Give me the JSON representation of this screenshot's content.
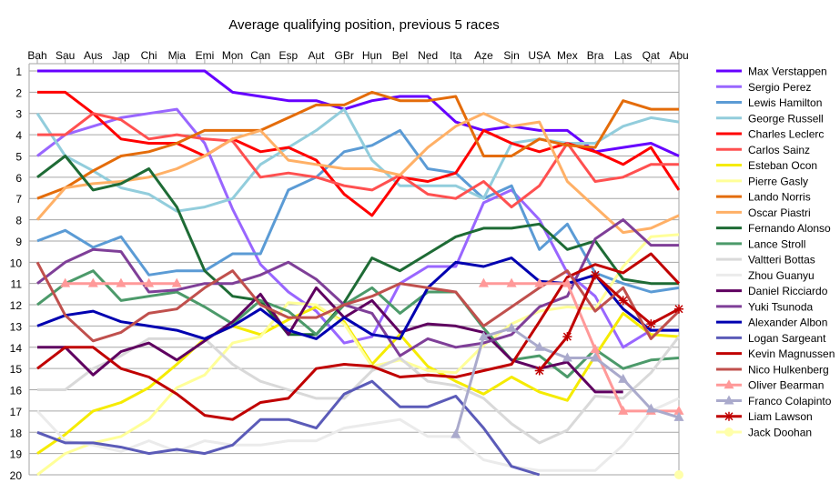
{
  "chart_data": {
    "type": "line",
    "title": "Average qualifying position, previous 5 races",
    "xlabel": "",
    "ylabel": "",
    "ylim": [
      1,
      20
    ],
    "y_inverted": true,
    "grid": true,
    "legend_position": "right",
    "categories": [
      "Bah",
      "Sau",
      "Aus",
      "Jap",
      "Chi",
      "Mia",
      "Emi",
      "Mon",
      "Can",
      "Esp",
      "Aut",
      "GBr",
      "Hun",
      "Bel",
      "Ned",
      "Ita",
      "Aze",
      "Sin",
      "USA",
      "Mex",
      "Bra",
      "Las",
      "Qat",
      "Abu"
    ],
    "y_ticks": [
      1,
      2,
      3,
      4,
      5,
      6,
      7,
      8,
      9,
      10,
      11,
      12,
      13,
      14,
      15,
      16,
      17,
      18,
      19,
      20
    ],
    "series": [
      {
        "name": "Max Verstappen",
        "color": "#6600FF",
        "marker": "none",
        "values": [
          1,
          1,
          1,
          1,
          1,
          1,
          1,
          2,
          2.2,
          2.4,
          2.4,
          2.8,
          2.4,
          2.2,
          2.2,
          3.4,
          3.8,
          3.6,
          3.8,
          3.8,
          4.8,
          4.6,
          4.4,
          5
        ]
      },
      {
        "name": "Sergio Perez",
        "color": "#9966FF",
        "marker": "none",
        "values": [
          5,
          4,
          3.6,
          3.2,
          3,
          2.8,
          4.4,
          7.5,
          10.1,
          11.4,
          12.3,
          13.8,
          13.5,
          11,
          10.2,
          10.2,
          7.2,
          6.6,
          8,
          10.5,
          11.6,
          14,
          13.2,
          13.2
        ]
      },
      {
        "name": "Lewis Hamilton",
        "color": "#5B9BD5",
        "marker": "none",
        "values": [
          9,
          8.5,
          9.3,
          8.8,
          10.6,
          10.4,
          10.4,
          9.6,
          9.6,
          6.6,
          6,
          4.8,
          4.5,
          3.8,
          5.6,
          5.8,
          7,
          6.4,
          9.4,
          8.2,
          10.5,
          11,
          11.4,
          11.2
        ]
      },
      {
        "name": "George Russell",
        "color": "#92CDDC",
        "marker": "none",
        "values": [
          3,
          5,
          5.7,
          6.5,
          6.8,
          7.6,
          7.4,
          7,
          5.4,
          4.6,
          3.8,
          2.8,
          5.2,
          6.4,
          6.4,
          6.4,
          7,
          4.4,
          4.2,
          4.4,
          4.4,
          3.6,
          3.2,
          3.4
        ]
      },
      {
        "name": "Charles Leclerc",
        "color": "#FF0000",
        "marker": "none",
        "values": [
          2,
          2,
          3,
          4.2,
          4.4,
          4.4,
          5,
          4.2,
          4.8,
          4.6,
          5.2,
          6.8,
          7.8,
          6,
          6.2,
          5.8,
          3.8,
          4.4,
          4.8,
          4.4,
          4.8,
          5.4,
          4.6,
          6.6
        ]
      },
      {
        "name": "Carlos Sainz",
        "color": "#FF5050",
        "marker": "none",
        "values": [
          4,
          4,
          3,
          3.3,
          4.2,
          4,
          4.2,
          4.3,
          6,
          5.8,
          6,
          6.4,
          6.6,
          5.9,
          6.8,
          7,
          6.2,
          7.4,
          6.4,
          4.4,
          6.2,
          6,
          5.4,
          5.4
        ]
      },
      {
        "name": "Esteban Ocon",
        "color": "#F5EB00",
        "marker": "none",
        "values": [
          19,
          18.1,
          17,
          16.6,
          15.9,
          14.8,
          13.6,
          13,
          13.4,
          12.7,
          12.1,
          12.8,
          14.8,
          13.4,
          14.9,
          15.6,
          16.2,
          15.4,
          16.1,
          16.5,
          14.4,
          12.4,
          13.4,
          13.5
        ]
      },
      {
        "name": "Pierre Gasly",
        "color": "#FFFF99",
        "marker": "none",
        "values": [
          20,
          19,
          18.5,
          18.2,
          17.4,
          15.9,
          15.3,
          13.8,
          13.5,
          11.9,
          12,
          12.9,
          14.9,
          14.6,
          15.1,
          15.2,
          13.9,
          12.9,
          12.3,
          12.1,
          12.2,
          10.2,
          8.8,
          8.7
        ]
      },
      {
        "name": "Lando Norris",
        "color": "#E46C0A",
        "marker": "none",
        "values": [
          7,
          6.5,
          5.7,
          5,
          4.8,
          4.4,
          3.8,
          3.8,
          3.8,
          3.2,
          2.6,
          2.6,
          2,
          2.4,
          2.4,
          2.2,
          5,
          5,
          4.2,
          4.5,
          4.6,
          2.4,
          2.8,
          2.8
        ]
      },
      {
        "name": "Oscar Piastri",
        "color": "#FFB066",
        "marker": "none",
        "values": [
          8,
          6.5,
          6.3,
          6.2,
          6,
          5.6,
          5,
          4.2,
          3.8,
          5.2,
          5.4,
          5.6,
          5.6,
          5.9,
          4.6,
          3.6,
          3,
          3.6,
          3.4,
          6.2,
          7.4,
          8.6,
          8.4,
          7.8
        ]
      },
      {
        "name": "Fernando Alonso",
        "color": "#1E6B35",
        "marker": "none",
        "values": [
          6,
          5,
          6.6,
          6.3,
          5.6,
          7.4,
          10.4,
          11.6,
          11.8,
          13.4,
          13.4,
          11.9,
          9.8,
          10.4,
          9.6,
          8.8,
          8.4,
          8.4,
          8.2,
          9.4,
          9,
          10.8,
          11,
          11
        ]
      },
      {
        "name": "Lance Stroll",
        "color": "#4C9A6A",
        "marker": "none",
        "values": [
          12,
          11,
          10.4,
          11.8,
          11.6,
          11.4,
          12.1,
          12.9,
          11.8,
          12.3,
          13.4,
          12,
          11.2,
          12.4,
          11.4,
          11.4,
          13.1,
          14.6,
          14.4,
          15.4,
          14.1,
          15,
          14.6,
          14.5
        ]
      },
      {
        "name": "Valtteri Bottas",
        "color": "#D9D9D9",
        "marker": "none",
        "values": [
          16,
          16,
          15,
          14.4,
          13.6,
          13.6,
          13.6,
          14.8,
          15.6,
          16,
          16.4,
          16.4,
          15.1,
          14.5,
          15.6,
          15.8,
          16.4,
          17.6,
          18.5,
          17.9,
          16.3,
          16.4,
          15.2,
          13.5
        ]
      },
      {
        "name": "Zhou Guanyu",
        "color": "#EBEBEB",
        "marker": "none",
        "values": [
          17,
          18.4,
          18.6,
          18.9,
          18.4,
          18.9,
          18.4,
          18.6,
          18.6,
          18.4,
          18.4,
          17.8,
          17.6,
          17.4,
          18.2,
          18.2,
          19.3,
          19.6,
          19.8,
          19.8,
          19.8,
          18.6,
          17,
          16.4
        ]
      },
      {
        "name": "Daniel Ricciardo",
        "color": "#5F0060",
        "marker": "none",
        "values": [
          14,
          14,
          15.3,
          14.2,
          13.8,
          14.6,
          13.7,
          12.8,
          11.5,
          13.4,
          11.2,
          12.6,
          11.8,
          13.3,
          12.9,
          13,
          13.3,
          14.6,
          15,
          14.7,
          16.1,
          16.1,
          null,
          null
        ]
      },
      {
        "name": "Yuki Tsunoda",
        "color": "#7F3F98",
        "marker": "none",
        "values": [
          11,
          10,
          9.4,
          9.5,
          11.4,
          11.3,
          11,
          11,
          10.6,
          10,
          10.8,
          12,
          12.4,
          14.4,
          13.6,
          14,
          13.8,
          13.4,
          12.1,
          11.6,
          8.9,
          8,
          9.2,
          9.2
        ]
      },
      {
        "name": "Alexander Albon",
        "color": "#0000B0",
        "marker": "none",
        "values": [
          13,
          12.5,
          12.3,
          12.8,
          13,
          13.2,
          13.6,
          13,
          12.2,
          13.2,
          13.6,
          12.6,
          13.4,
          13.6,
          11.2,
          10,
          10.2,
          9.8,
          10.9,
          11,
          10.6,
          12.2,
          13.2,
          13.2
        ]
      },
      {
        "name": "Logan Sargeant",
        "color": "#5B5BB8",
        "marker": "none",
        "values": [
          18,
          18.5,
          18.5,
          18.7,
          19,
          18.8,
          19,
          18.6,
          17.4,
          17.4,
          17.8,
          16.2,
          15.6,
          16.8,
          16.8,
          16.3,
          17.8,
          19.6,
          20,
          null,
          null,
          null,
          null,
          null
        ]
      },
      {
        "name": "Kevin Magnussen",
        "color": "#C00000",
        "marker": "none",
        "values": [
          15,
          14,
          14,
          15,
          15.4,
          16.2,
          17.2,
          17.4,
          16.6,
          16.4,
          15,
          14.8,
          14.9,
          15.4,
          15.3,
          15.4,
          15.1,
          14.8,
          12.8,
          10.7,
          10.1,
          10.5,
          9.6,
          11
        ]
      },
      {
        "name": "Nico Hulkenberg",
        "color": "#C0504D",
        "marker": "none",
        "values": [
          10,
          12.5,
          13.7,
          13.3,
          12.4,
          12.2,
          11.2,
          10.4,
          12,
          12.6,
          12.6,
          12,
          11.6,
          11,
          11.2,
          11.4,
          13,
          12.1,
          11.2,
          10.4,
          12.3,
          11.2,
          13.6,
          12.3
        ]
      },
      {
        "name": "Oliver Bearman",
        "color": "#FF9999",
        "marker": "triangle",
        "values": [
          null,
          11,
          11,
          11,
          11,
          11,
          null,
          null,
          null,
          null,
          null,
          null,
          null,
          null,
          null,
          null,
          11,
          11,
          11,
          11,
          14.1,
          17,
          17,
          17
        ]
      },
      {
        "name": "Franco Colapinto",
        "color": "#AAAACC",
        "marker": "triangle",
        "values": [
          null,
          null,
          null,
          null,
          null,
          null,
          null,
          null,
          null,
          null,
          null,
          null,
          null,
          null,
          null,
          18.1,
          13.5,
          13.1,
          14,
          14.5,
          14.5,
          15.5,
          16.9,
          17.3
        ]
      },
      {
        "name": "Liam Lawson",
        "color": "#C00000",
        "marker": "asterisk",
        "values": [
          null,
          null,
          null,
          null,
          null,
          null,
          null,
          null,
          null,
          null,
          null,
          null,
          null,
          null,
          null,
          null,
          null,
          null,
          15.1,
          13.5,
          10.6,
          11.8,
          12.9,
          12.2
        ]
      },
      {
        "name": "Jack Doohan",
        "color": "#FFFFAA",
        "marker": "circle",
        "values": [
          null,
          null,
          null,
          null,
          null,
          null,
          null,
          null,
          null,
          null,
          null,
          null,
          null,
          null,
          null,
          null,
          null,
          null,
          null,
          null,
          null,
          null,
          null,
          20
        ]
      }
    ]
  }
}
